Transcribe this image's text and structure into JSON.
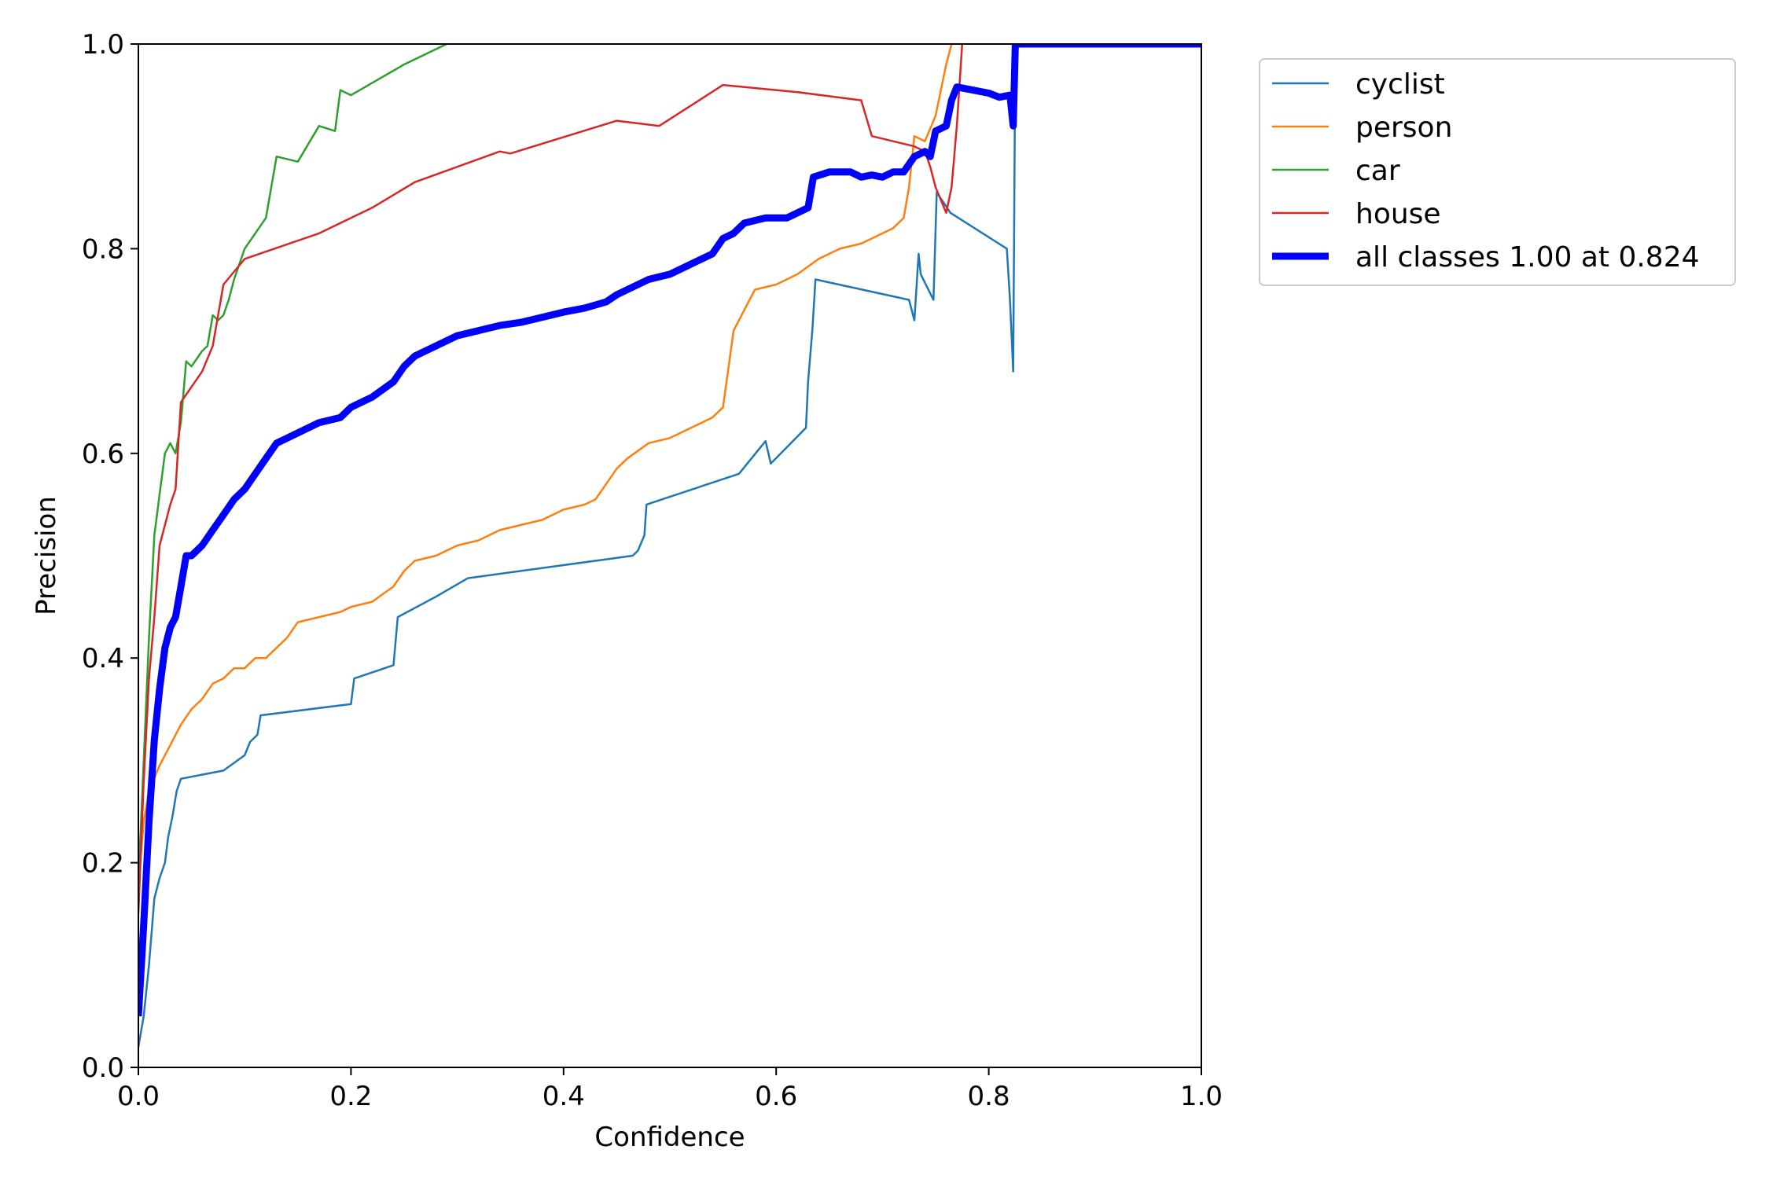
{
  "chart_data": {
    "type": "line",
    "title": "",
    "xlabel": "Confidence",
    "ylabel": "Precision",
    "xlim": [
      0,
      1
    ],
    "ylim": [
      0,
      1
    ],
    "x_ticks": [
      "0.0",
      "0.2",
      "0.4",
      "0.6",
      "0.8",
      "1.0"
    ],
    "y_ticks": [
      "0.0",
      "0.2",
      "0.4",
      "0.6",
      "0.8",
      "1.0"
    ],
    "grid": false,
    "legend_position": "outside-top-right",
    "series": [
      {
        "name": "cyclist",
        "color": "#1f77b4",
        "points": [
          [
            0.0,
            0.02
          ],
          [
            0.005,
            0.05
          ],
          [
            0.01,
            0.1
          ],
          [
            0.015,
            0.165
          ],
          [
            0.02,
            0.185
          ],
          [
            0.025,
            0.2
          ],
          [
            0.028,
            0.225
          ],
          [
            0.032,
            0.245
          ],
          [
            0.036,
            0.27
          ],
          [
            0.04,
            0.282
          ],
          [
            0.08,
            0.29
          ],
          [
            0.1,
            0.305
          ],
          [
            0.105,
            0.318
          ],
          [
            0.112,
            0.325
          ],
          [
            0.115,
            0.344
          ],
          [
            0.2,
            0.355
          ],
          [
            0.203,
            0.38
          ],
          [
            0.24,
            0.393
          ],
          [
            0.244,
            0.44
          ],
          [
            0.28,
            0.46
          ],
          [
            0.31,
            0.478
          ],
          [
            0.465,
            0.5
          ],
          [
            0.47,
            0.505
          ],
          [
            0.476,
            0.52
          ],
          [
            0.478,
            0.55
          ],
          [
            0.565,
            0.58
          ],
          [
            0.59,
            0.612
          ],
          [
            0.595,
            0.59
          ],
          [
            0.628,
            0.625
          ],
          [
            0.63,
            0.67
          ],
          [
            0.634,
            0.72
          ],
          [
            0.637,
            0.77
          ],
          [
            0.725,
            0.75
          ],
          [
            0.73,
            0.73
          ],
          [
            0.734,
            0.795
          ],
          [
            0.736,
            0.775
          ],
          [
            0.748,
            0.75
          ],
          [
            0.751,
            0.855
          ],
          [
            0.764,
            0.835
          ],
          [
            0.817,
            0.8
          ],
          [
            0.82,
            0.75
          ],
          [
            0.823,
            0.68
          ],
          [
            0.825,
            1.0
          ],
          [
            1.0,
            1.0
          ]
        ]
      },
      {
        "name": "person",
        "color": "#ff7f0e",
        "points": [
          [
            0.0,
            0.18
          ],
          [
            0.005,
            0.24
          ],
          [
            0.01,
            0.27
          ],
          [
            0.02,
            0.295
          ],
          [
            0.03,
            0.315
          ],
          [
            0.04,
            0.335
          ],
          [
            0.05,
            0.35
          ],
          [
            0.06,
            0.36
          ],
          [
            0.07,
            0.375
          ],
          [
            0.08,
            0.38
          ],
          [
            0.09,
            0.39
          ],
          [
            0.1,
            0.39
          ],
          [
            0.11,
            0.4
          ],
          [
            0.12,
            0.4
          ],
          [
            0.13,
            0.41
          ],
          [
            0.14,
            0.42
          ],
          [
            0.15,
            0.435
          ],
          [
            0.17,
            0.44
          ],
          [
            0.19,
            0.445
          ],
          [
            0.2,
            0.45
          ],
          [
            0.22,
            0.455
          ],
          [
            0.24,
            0.47
          ],
          [
            0.25,
            0.485
          ],
          [
            0.26,
            0.495
          ],
          [
            0.28,
            0.5
          ],
          [
            0.3,
            0.51
          ],
          [
            0.32,
            0.515
          ],
          [
            0.34,
            0.525
          ],
          [
            0.36,
            0.53
          ],
          [
            0.38,
            0.535
          ],
          [
            0.4,
            0.545
          ],
          [
            0.42,
            0.55
          ],
          [
            0.43,
            0.555
          ],
          [
            0.44,
            0.57
          ],
          [
            0.45,
            0.585
          ],
          [
            0.46,
            0.595
          ],
          [
            0.48,
            0.61
          ],
          [
            0.5,
            0.615
          ],
          [
            0.52,
            0.625
          ],
          [
            0.54,
            0.635
          ],
          [
            0.55,
            0.645
          ],
          [
            0.56,
            0.72
          ],
          [
            0.57,
            0.74
          ],
          [
            0.58,
            0.76
          ],
          [
            0.6,
            0.765
          ],
          [
            0.62,
            0.775
          ],
          [
            0.64,
            0.79
          ],
          [
            0.66,
            0.8
          ],
          [
            0.68,
            0.805
          ],
          [
            0.7,
            0.815
          ],
          [
            0.71,
            0.82
          ],
          [
            0.72,
            0.83
          ],
          [
            0.725,
            0.86
          ],
          [
            0.73,
            0.91
          ],
          [
            0.74,
            0.905
          ],
          [
            0.75,
            0.93
          ],
          [
            0.76,
            0.98
          ],
          [
            0.765,
            1.0
          ]
        ]
      },
      {
        "name": "car",
        "color": "#2ca02c",
        "points": [
          [
            0.0,
            0.18
          ],
          [
            0.005,
            0.3
          ],
          [
            0.01,
            0.42
          ],
          [
            0.015,
            0.52
          ],
          [
            0.02,
            0.56
          ],
          [
            0.025,
            0.6
          ],
          [
            0.03,
            0.61
          ],
          [
            0.035,
            0.6
          ],
          [
            0.04,
            0.63
          ],
          [
            0.045,
            0.69
          ],
          [
            0.05,
            0.685
          ],
          [
            0.06,
            0.7
          ],
          [
            0.065,
            0.705
          ],
          [
            0.07,
            0.735
          ],
          [
            0.075,
            0.73
          ],
          [
            0.08,
            0.735
          ],
          [
            0.085,
            0.75
          ],
          [
            0.09,
            0.77
          ],
          [
            0.1,
            0.8
          ],
          [
            0.12,
            0.83
          ],
          [
            0.125,
            0.86
          ],
          [
            0.13,
            0.89
          ],
          [
            0.15,
            0.885
          ],
          [
            0.17,
            0.92
          ],
          [
            0.185,
            0.915
          ],
          [
            0.19,
            0.955
          ],
          [
            0.2,
            0.95
          ],
          [
            0.25,
            0.98
          ],
          [
            0.29,
            1.0
          ]
        ]
      },
      {
        "name": "house",
        "color": "#d62728",
        "points": [
          [
            0.0,
            0.15
          ],
          [
            0.005,
            0.28
          ],
          [
            0.01,
            0.38
          ],
          [
            0.015,
            0.44
          ],
          [
            0.02,
            0.51
          ],
          [
            0.025,
            0.53
          ],
          [
            0.03,
            0.55
          ],
          [
            0.035,
            0.565
          ],
          [
            0.04,
            0.65
          ],
          [
            0.05,
            0.665
          ],
          [
            0.06,
            0.68
          ],
          [
            0.07,
            0.705
          ],
          [
            0.08,
            0.765
          ],
          [
            0.1,
            0.79
          ],
          [
            0.17,
            0.815
          ],
          [
            0.22,
            0.84
          ],
          [
            0.26,
            0.865
          ],
          [
            0.34,
            0.895
          ],
          [
            0.35,
            0.893
          ],
          [
            0.45,
            0.925
          ],
          [
            0.49,
            0.92
          ],
          [
            0.55,
            0.96
          ],
          [
            0.6,
            0.955
          ],
          [
            0.62,
            0.953
          ],
          [
            0.68,
            0.945
          ],
          [
            0.69,
            0.91
          ],
          [
            0.73,
            0.9
          ],
          [
            0.74,
            0.895
          ],
          [
            0.745,
            0.88
          ],
          [
            0.75,
            0.86
          ],
          [
            0.76,
            0.835
          ],
          [
            0.765,
            0.86
          ],
          [
            0.77,
            0.92
          ],
          [
            0.775,
            1.0
          ]
        ]
      },
      {
        "name": "all classes 1.00 at 0.824",
        "color": "#0000ff",
        "points": [
          [
            0.0,
            0.05
          ],
          [
            0.005,
            0.14
          ],
          [
            0.01,
            0.24
          ],
          [
            0.015,
            0.32
          ],
          [
            0.02,
            0.37
          ],
          [
            0.025,
            0.41
          ],
          [
            0.03,
            0.43
          ],
          [
            0.035,
            0.44
          ],
          [
            0.04,
            0.47
          ],
          [
            0.045,
            0.5
          ],
          [
            0.05,
            0.5
          ],
          [
            0.06,
            0.51
          ],
          [
            0.07,
            0.525
          ],
          [
            0.08,
            0.54
          ],
          [
            0.09,
            0.555
          ],
          [
            0.1,
            0.565
          ],
          [
            0.11,
            0.58
          ],
          [
            0.12,
            0.595
          ],
          [
            0.13,
            0.61
          ],
          [
            0.14,
            0.615
          ],
          [
            0.15,
            0.62
          ],
          [
            0.17,
            0.63
          ],
          [
            0.19,
            0.635
          ],
          [
            0.2,
            0.645
          ],
          [
            0.22,
            0.655
          ],
          [
            0.24,
            0.67
          ],
          [
            0.25,
            0.685
          ],
          [
            0.26,
            0.695
          ],
          [
            0.28,
            0.705
          ],
          [
            0.3,
            0.715
          ],
          [
            0.32,
            0.72
          ],
          [
            0.34,
            0.725
          ],
          [
            0.36,
            0.728
          ],
          [
            0.38,
            0.733
          ],
          [
            0.4,
            0.738
          ],
          [
            0.42,
            0.742
          ],
          [
            0.44,
            0.748
          ],
          [
            0.45,
            0.755
          ],
          [
            0.46,
            0.76
          ],
          [
            0.48,
            0.77
          ],
          [
            0.5,
            0.775
          ],
          [
            0.52,
            0.785
          ],
          [
            0.54,
            0.795
          ],
          [
            0.55,
            0.81
          ],
          [
            0.56,
            0.815
          ],
          [
            0.57,
            0.825
          ],
          [
            0.59,
            0.83
          ],
          [
            0.61,
            0.83
          ],
          [
            0.63,
            0.84
          ],
          [
            0.635,
            0.87
          ],
          [
            0.65,
            0.875
          ],
          [
            0.67,
            0.875
          ],
          [
            0.68,
            0.87
          ],
          [
            0.69,
            0.872
          ],
          [
            0.7,
            0.87
          ],
          [
            0.71,
            0.875
          ],
          [
            0.72,
            0.875
          ],
          [
            0.73,
            0.89
          ],
          [
            0.74,
            0.895
          ],
          [
            0.745,
            0.89
          ],
          [
            0.75,
            0.915
          ],
          [
            0.76,
            0.92
          ],
          [
            0.765,
            0.945
          ],
          [
            0.77,
            0.958
          ],
          [
            0.8,
            0.952
          ],
          [
            0.81,
            0.948
          ],
          [
            0.82,
            0.95
          ],
          [
            0.823,
            0.92
          ],
          [
            0.825,
            1.0
          ],
          [
            1.0,
            1.0
          ]
        ]
      }
    ]
  }
}
